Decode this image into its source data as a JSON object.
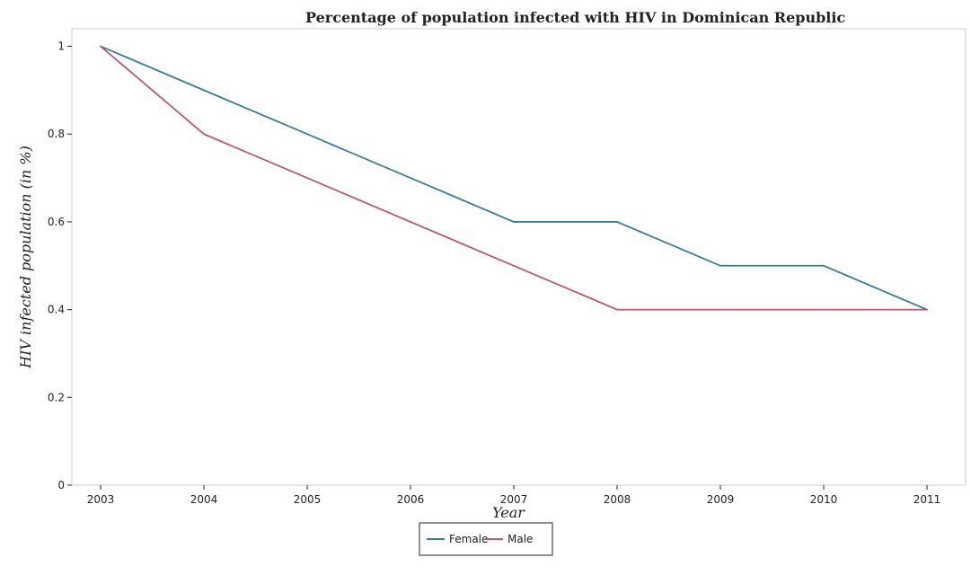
{
  "chart_data": {
    "type": "line",
    "title": "Percentage of population infected with HIV in Dominican Republic",
    "xlabel": "Year",
    "ylabel": "HIV infected population (in %)",
    "categories": [
      "2003",
      "2004",
      "2005",
      "2006",
      "2007",
      "2008",
      "2009",
      "2010",
      "2011"
    ],
    "ylim": [
      0,
      1.04
    ],
    "yticks": [
      0,
      0.2,
      0.4,
      0.6,
      0.8,
      1
    ],
    "ytick_labels": [
      "0",
      "0.2",
      "0.4",
      "0.6",
      "0.8",
      "1"
    ],
    "grid": false,
    "legend_position": "bottom-center",
    "series": [
      {
        "name": "Female",
        "color": "#3a7c9a",
        "values": [
          1.0,
          0.9,
          0.8,
          0.7,
          0.6,
          0.6,
          0.5,
          0.5,
          0.4
        ]
      },
      {
        "name": "Male",
        "color": "#b85a6a",
        "values": [
          1.0,
          0.8,
          0.7,
          0.6,
          0.5,
          0.4,
          0.4,
          0.4,
          0.4
        ]
      }
    ]
  }
}
